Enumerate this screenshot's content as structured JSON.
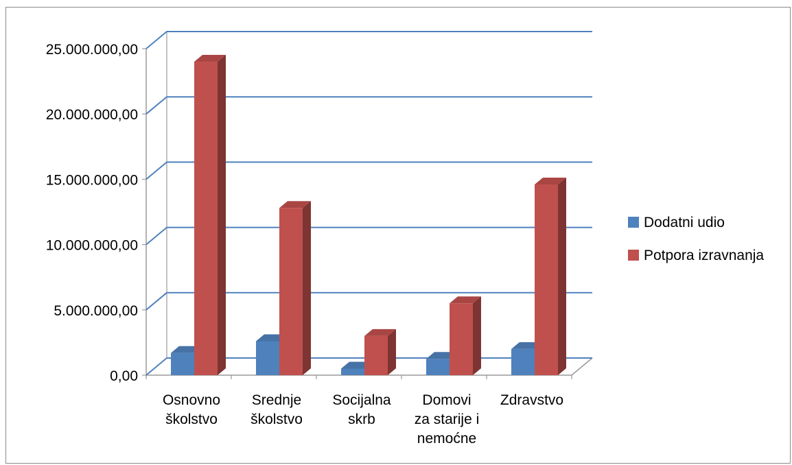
{
  "chart_data": {
    "type": "bar",
    "title": "",
    "xlabel": "",
    "ylabel": "",
    "ylim": [
      0,
      25000000
    ],
    "yticks": [
      0,
      5000000,
      10000000,
      15000000,
      20000000,
      25000000
    ],
    "ytick_labels": [
      "0,00",
      "5.000.000,00",
      "10.000.000,00",
      "15.000.000,00",
      "20.000.000,00",
      "25.000.000,00"
    ],
    "categories": [
      [
        "Osnovno",
        "školstvo"
      ],
      [
        "Srednje",
        "školstvo"
      ],
      [
        "Socijalna",
        "skrb"
      ],
      [
        "Domovi",
        "za starije i",
        "nemoćne"
      ],
      [
        "Zdravstvo"
      ]
    ],
    "series": [
      {
        "name": "Dodatni udio",
        "color": "#4f81bd",
        "values": [
          1700000,
          2600000,
          500000,
          1250000,
          2000000
        ]
      },
      {
        "name": "Potpora izravnanja",
        "color": "#c0504d",
        "values": [
          24000000,
          12800000,
          3000000,
          5500000,
          14600000
        ]
      }
    ],
    "grid": true,
    "legend": "right",
    "style": "3d-column"
  }
}
